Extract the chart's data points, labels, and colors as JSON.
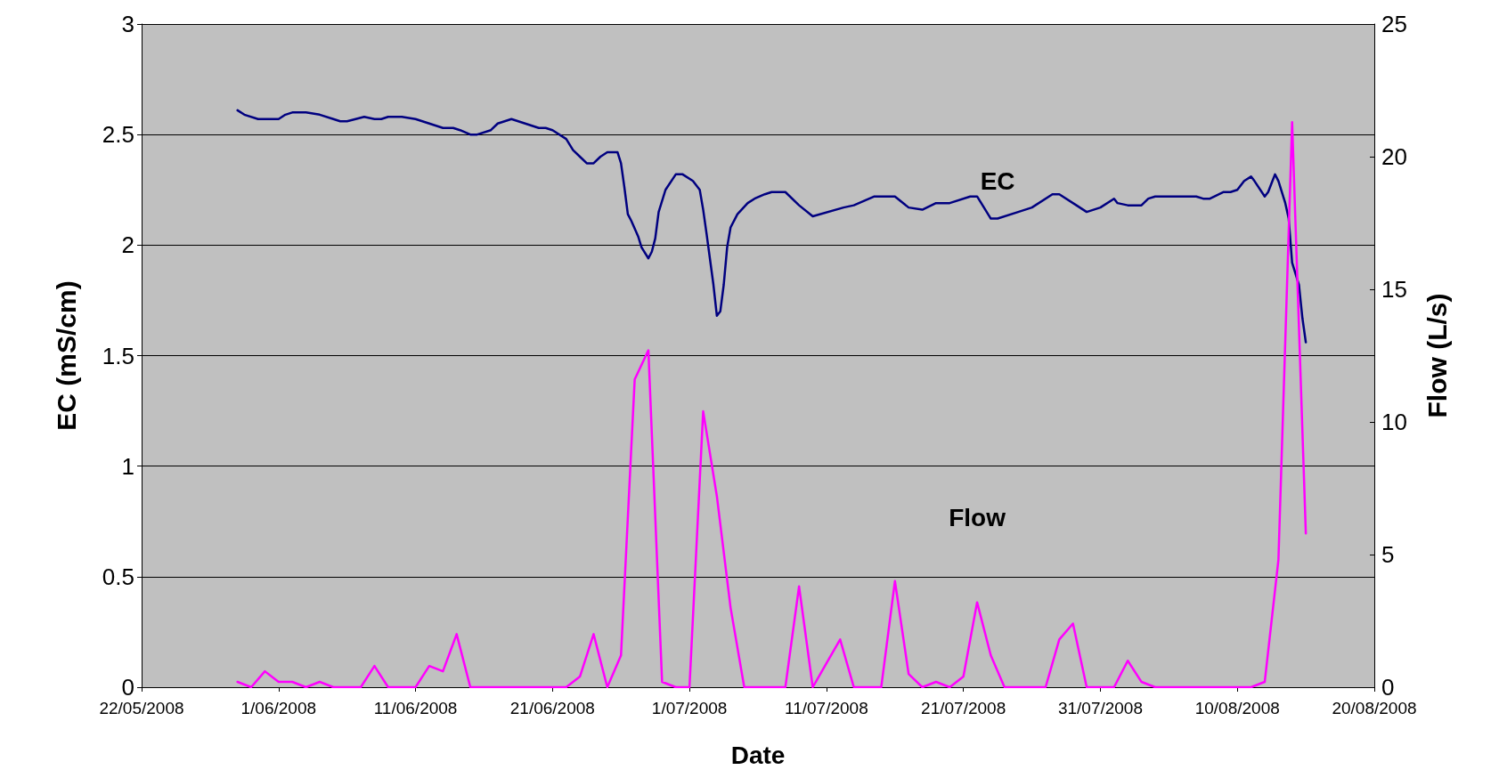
{
  "chart_data": {
    "type": "line",
    "xlabel": "Date",
    "ylabel": "EC (mS/cm)",
    "y2label": "Flow (L/s)",
    "xlim": [
      "2008-05-22",
      "2008-08-20"
    ],
    "xticks": [
      {
        "value": "2008-05-22",
        "label": "22/05/2008"
      },
      {
        "value": "2008-06-01",
        "label": "1/06/2008"
      },
      {
        "value": "2008-06-11",
        "label": "11/06/2008"
      },
      {
        "value": "2008-06-21",
        "label": "21/06/2008"
      },
      {
        "value": "2008-07-01",
        "label": "1/07/2008"
      },
      {
        "value": "2008-07-11",
        "label": "11/07/2008"
      },
      {
        "value": "2008-07-21",
        "label": "21/07/2008"
      },
      {
        "value": "2008-07-31",
        "label": "31/07/2008"
      },
      {
        "value": "2008-08-10",
        "label": "10/08/2008"
      },
      {
        "value": "2008-08-20",
        "label": "20/08/2008"
      }
    ],
    "ylim": [
      0,
      3
    ],
    "yticks": [
      0,
      0.5,
      1,
      1.5,
      2,
      2.5,
      3
    ],
    "y2lim": [
      0,
      25
    ],
    "y2ticks": [
      0,
      5,
      10,
      15,
      20,
      25
    ],
    "grid": "y",
    "marker": "none",
    "line_style": "solid",
    "legend": false,
    "series": [
      {
        "name": "EC",
        "color": "#000080",
        "x": [
          "2008-05-29",
          "2008-05-29T12:00",
          "2008-05-30T12:00",
          "2008-06-01",
          "2008-06-01T12:00",
          "2008-06-02",
          "2008-06-03",
          "2008-06-04",
          "2008-06-05",
          "2008-06-05T12:00",
          "2008-06-06",
          "2008-06-07T06:00",
          "2008-06-08",
          "2008-06-08T12:00",
          "2008-06-09",
          "2008-06-10",
          "2008-06-11",
          "2008-06-12",
          "2008-06-13",
          "2008-06-13T18:00",
          "2008-06-14T06:00",
          "2008-06-15",
          "2008-06-15T12:00",
          "2008-06-16T12:00",
          "2008-06-17",
          "2008-06-18",
          "2008-06-19",
          "2008-06-20",
          "2008-06-20T12:00",
          "2008-06-21",
          "2008-06-22",
          "2008-06-22T12:00",
          "2008-06-23",
          "2008-06-23T12:00",
          "2008-06-24",
          "2008-06-24T12:00",
          "2008-06-25",
          "2008-06-25T18:00",
          "2008-06-26",
          "2008-06-26T06:00",
          "2008-06-26T12:00",
          "2008-06-26T18:00",
          "2008-06-27T06:00",
          "2008-06-27T12:00",
          "2008-06-28",
          "2008-06-28T06:00",
          "2008-06-28T12:00",
          "2008-06-28T18:00",
          "2008-06-29T06:00",
          "2008-06-30",
          "2008-06-30T12:00",
          "2008-07-01T06:00",
          "2008-07-01T18:00",
          "2008-07-02",
          "2008-07-02T06:00",
          "2008-07-02T18:00",
          "2008-07-03",
          "2008-07-03T06:00",
          "2008-07-03T12:00",
          "2008-07-03T18:00",
          "2008-07-04",
          "2008-07-04T12:00",
          "2008-07-05T06:00",
          "2008-07-05T18:00",
          "2008-07-06T12:00",
          "2008-07-07",
          "2008-07-08",
          "2008-07-09",
          "2008-07-10",
          "2008-07-12T06:00",
          "2008-07-13",
          "2008-07-14T12:00",
          "2008-07-16",
          "2008-07-17",
          "2008-07-18",
          "2008-07-19",
          "2008-07-20",
          "2008-07-21T12:00",
          "2008-07-22",
          "2008-07-23",
          "2008-07-23T12:00",
          "2008-07-25",
          "2008-07-26",
          "2008-07-27T12:00",
          "2008-07-28",
          "2008-07-29T06:00",
          "2008-07-29T18:00",
          "2008-07-30",
          "2008-07-31",
          "2008-08-01",
          "2008-08-01T06:00",
          "2008-08-02",
          "2008-08-03",
          "2008-08-03T12:00",
          "2008-08-04",
          "2008-08-07",
          "2008-08-07T12:00",
          "2008-08-08",
          "2008-08-09",
          "2008-08-09T12:00",
          "2008-08-10",
          "2008-08-10T12:00",
          "2008-08-11",
          "2008-08-11T06:00",
          "2008-08-12",
          "2008-08-12T06:00",
          "2008-08-12T12:00",
          "2008-08-12T18:00",
          "2008-08-13",
          "2008-08-13T12:00",
          "2008-08-13T18:00",
          "2008-08-14",
          "2008-08-14T12:00",
          "2008-08-14T18:00",
          "2008-08-15"
        ],
        "values": [
          2.61,
          2.59,
          2.57,
          2.57,
          2.59,
          2.6,
          2.6,
          2.59,
          2.57,
          2.56,
          2.56,
          2.58,
          2.57,
          2.57,
          2.58,
          2.58,
          2.57,
          2.55,
          2.53,
          2.53,
          2.52,
          2.5,
          2.5,
          2.52,
          2.55,
          2.57,
          2.55,
          2.53,
          2.53,
          2.52,
          2.48,
          2.43,
          2.4,
          2.37,
          2.37,
          2.4,
          2.42,
          2.42,
          2.37,
          2.26,
          2.14,
          2.11,
          2.04,
          1.99,
          1.94,
          1.97,
          2.03,
          2.15,
          2.25,
          2.32,
          2.32,
          2.29,
          2.25,
          2.16,
          2.05,
          1.82,
          1.68,
          1.7,
          1.82,
          1.99,
          2.08,
          2.14,
          2.19,
          2.21,
          2.23,
          2.24,
          2.24,
          2.18,
          2.13,
          2.17,
          2.18,
          2.22,
          2.22,
          2.17,
          2.16,
          2.19,
          2.19,
          2.22,
          2.22,
          2.12,
          2.12,
          2.15,
          2.17,
          2.23,
          2.23,
          2.18,
          2.16,
          2.15,
          2.17,
          2.21,
          2.19,
          2.18,
          2.18,
          2.21,
          2.22,
          2.22,
          2.21,
          2.21,
          2.24,
          2.24,
          2.25,
          2.29,
          2.31,
          2.29,
          2.22,
          2.24,
          2.28,
          2.32,
          2.29,
          2.19,
          2.12,
          1.92,
          1.82,
          1.67,
          1.56
        ]
      },
      {
        "name": "Flow",
        "color": "#ff00ff",
        "axis": "y2",
        "x": [
          "2008-05-29",
          "2008-05-30",
          "2008-05-31",
          "2008-06-01",
          "2008-06-02",
          "2008-06-03",
          "2008-06-04",
          "2008-06-05",
          "2008-06-06",
          "2008-06-07",
          "2008-06-08",
          "2008-06-09",
          "2008-06-10",
          "2008-06-11",
          "2008-06-12",
          "2008-06-13",
          "2008-06-14",
          "2008-06-15",
          "2008-06-16",
          "2008-06-17",
          "2008-06-18",
          "2008-06-19",
          "2008-06-20",
          "2008-06-21",
          "2008-06-22",
          "2008-06-23",
          "2008-06-24",
          "2008-06-25",
          "2008-06-26",
          "2008-06-27",
          "2008-06-28",
          "2008-06-29",
          "2008-06-30",
          "2008-07-01",
          "2008-07-02",
          "2008-07-03",
          "2008-07-04",
          "2008-07-05",
          "2008-07-06",
          "2008-07-07",
          "2008-07-08",
          "2008-07-09",
          "2008-07-10",
          "2008-07-11",
          "2008-07-12",
          "2008-07-13",
          "2008-07-14",
          "2008-07-15",
          "2008-07-16",
          "2008-07-17",
          "2008-07-18",
          "2008-07-19",
          "2008-07-20",
          "2008-07-21",
          "2008-07-22",
          "2008-07-23",
          "2008-07-24",
          "2008-07-25",
          "2008-07-26",
          "2008-07-27",
          "2008-07-28",
          "2008-07-29",
          "2008-07-30",
          "2008-07-31",
          "2008-08-01",
          "2008-08-02",
          "2008-08-03",
          "2008-08-04",
          "2008-08-05",
          "2008-08-06",
          "2008-08-07",
          "2008-08-08",
          "2008-08-09",
          "2008-08-10",
          "2008-08-11",
          "2008-08-12",
          "2008-08-13",
          "2008-08-14",
          "2008-08-15"
        ],
        "values": [
          0.2,
          0,
          0.6,
          0.2,
          0.2,
          0,
          0.2,
          0,
          0,
          0,
          0.8,
          0,
          0,
          0,
          0.8,
          0.6,
          2.0,
          0,
          0,
          0,
          0,
          0,
          0,
          0,
          0,
          0.4,
          2.0,
          0,
          1.2,
          11.6,
          12.7,
          0.2,
          0,
          0,
          10.4,
          7.2,
          3.0,
          0,
          0,
          0,
          0,
          3.8,
          0,
          0.9,
          1.8,
          0,
          0,
          0,
          4.0,
          0.5,
          0,
          0.2,
          0,
          0.4,
          3.2,
          1.2,
          0,
          0,
          0,
          0,
          1.8,
          2.4,
          0,
          0,
          0,
          1.0,
          0.2,
          0,
          0,
          0,
          0,
          0,
          0,
          0,
          0,
          0.2,
          4.8,
          21.3,
          5.8
        ]
      }
    ]
  }
}
